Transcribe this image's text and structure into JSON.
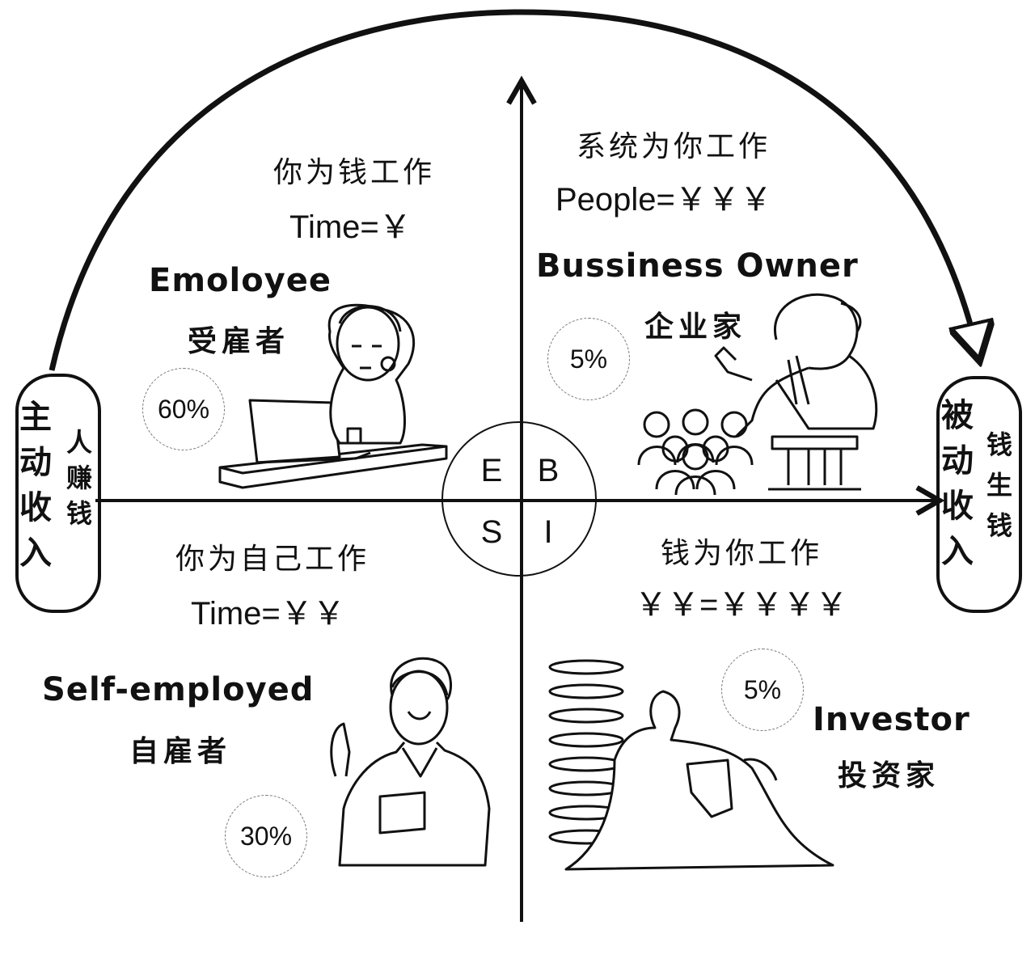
{
  "quadrants": {
    "employee": {
      "tagline": "你为钱工作",
      "formula": "Time=￥",
      "role": "Emoloyee",
      "role_cn": "受雇者",
      "percent": "60%",
      "letter": "E",
      "illustration": "stressed-worker-at-laptop"
    },
    "business_owner": {
      "tagline": "系统为你工作",
      "formula": "People=￥￥￥",
      "role": "Bussiness Owner",
      "role_cn": "企业家",
      "percent": "5%",
      "letter": "B",
      "illustration": "boss-with-team"
    },
    "self_employed": {
      "tagline": "你为自己工作",
      "formula": "Time=￥￥",
      "role": "Self-employed",
      "role_cn": "自雇者",
      "percent": "30%",
      "letter": "S",
      "illustration": "smiling-man-with-tablet"
    },
    "investor": {
      "tagline": "钱为你工作",
      "formula": "￥￥=￥￥￥￥",
      "role": "Investor",
      "role_cn": "投资家",
      "percent": "5%",
      "letter": "I",
      "illustration": "man-relaxing-by-coin-stack"
    }
  },
  "left_pill": {
    "title": "主动收入",
    "subtitle": "人赚钱"
  },
  "right_pill": {
    "title": "被动收入",
    "subtitle": "钱生钱"
  },
  "icons": [
    "arrow-up-icon",
    "arrow-right-icon",
    "curved-arrow-icon"
  ]
}
